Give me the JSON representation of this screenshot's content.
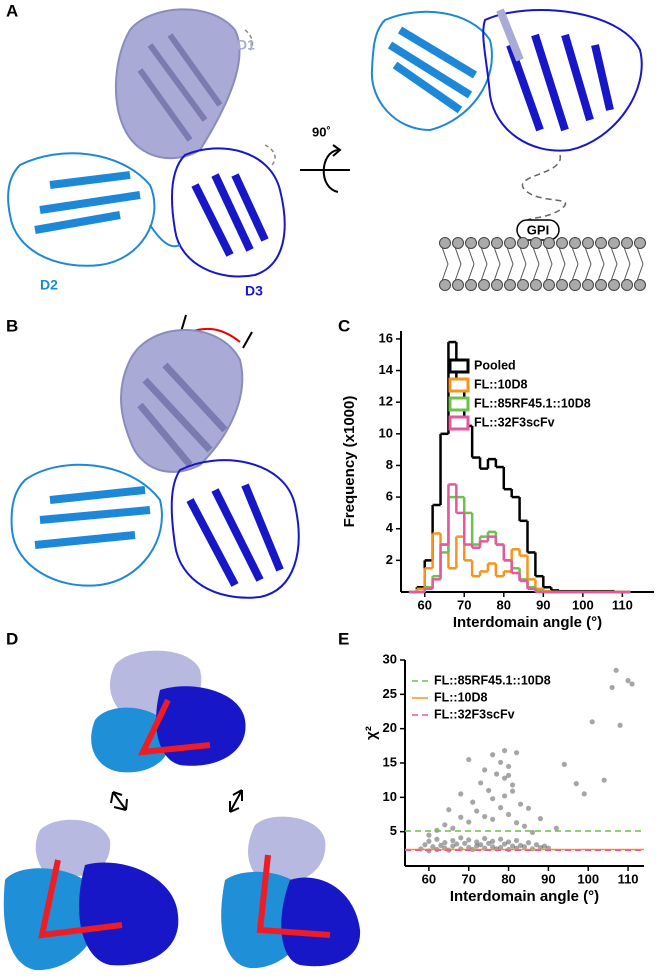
{
  "panel_labels": [
    "A",
    "B",
    "C",
    "D",
    "E"
  ],
  "annotations": {
    "d1": "D1",
    "d2": "D2",
    "d3": "D3",
    "rotation": "90˚",
    "gpi": "GPI"
  },
  "chart_data": [
    {
      "type": "histogram",
      "xlabel": "Interdomain angle (°)",
      "ylabel": "Frequency (x1000)",
      "bins": [
        56,
        58,
        60,
        62,
        64,
        66,
        68,
        70,
        72,
        74,
        76,
        78,
        80,
        82,
        84,
        86,
        88,
        90,
        92,
        94,
        96,
        98,
        100,
        102,
        104,
        106,
        108,
        110,
        112
      ],
      "series": [
        {
          "name": "Pooled",
          "color": "#000000",
          "values": [
            0,
            0.3,
            2,
            5.5,
            10,
            15.8,
            13,
            10.5,
            8.5,
            7.8,
            8.4,
            7.9,
            6.5,
            6,
            4.5,
            2.5,
            1,
            0.3,
            0.1,
            0.05,
            0.05,
            0.05,
            0.05,
            0.05,
            0.05,
            0.05,
            0,
            0
          ]
        },
        {
          "name": "FL::10D8",
          "color": "#f7941d",
          "values": [
            0,
            0.2,
            1.5,
            3.7,
            3,
            1.5,
            3.5,
            2,
            1,
            1.3,
            1.8,
            1,
            1.3,
            2.7,
            2.3,
            0.8,
            0.2,
            0.05,
            0,
            0,
            0,
            0,
            0,
            0,
            0,
            0,
            0,
            0
          ]
        },
        {
          "name": "FL::85RF45.1::10D8",
          "color": "#6cc24a",
          "values": [
            0,
            0,
            0.3,
            1,
            2.5,
            6,
            6,
            5,
            3,
            3.5,
            3.8,
            3,
            2,
            1.5,
            0.8,
            0.3,
            0.1,
            0,
            0,
            0,
            0,
            0,
            0,
            0,
            0,
            0,
            0,
            0
          ]
        },
        {
          "name": "FL::32F3scFv",
          "color": "#e8569c",
          "values": [
            0,
            0,
            0.2,
            0.8,
            3,
            6.8,
            5,
            3,
            2.8,
            3.2,
            3.5,
            3,
            2,
            1.2,
            0.7,
            0.2,
            0,
            0,
            0,
            0,
            0,
            0,
            0,
            0,
            0,
            0,
            0,
            0
          ]
        }
      ],
      "xlim": [
        54,
        118
      ],
      "ylim": [
        0,
        16.5
      ],
      "xticks": [
        60,
        70,
        80,
        90,
        100,
        110
      ],
      "yticks": [
        2,
        4,
        6,
        8,
        10,
        12,
        14,
        16
      ]
    },
    {
      "type": "scatter",
      "xlabel": "Interdomain angle (°)",
      "ylabel": "χ²",
      "color": "#000000",
      "x": [
        58,
        59,
        60,
        60,
        61,
        62,
        62,
        63,
        64,
        64,
        65,
        66,
        66,
        67,
        68,
        68,
        69,
        70,
        70,
        71,
        72,
        72,
        73,
        74,
        74,
        75,
        76,
        76,
        77,
        78,
        78,
        79,
        80,
        80,
        81,
        82,
        82,
        83,
        84,
        85,
        86,
        87,
        88,
        89,
        90,
        60,
        62,
        64,
        66,
        68,
        70,
        72,
        74,
        76,
        78,
        80,
        82,
        84,
        86,
        65,
        68,
        71,
        73,
        75,
        77,
        79,
        80,
        81,
        83,
        70,
        74,
        76,
        78,
        79,
        80,
        81,
        76,
        79,
        82,
        85,
        88,
        92,
        94,
        97,
        99,
        101,
        104,
        106,
        107,
        108,
        110,
        111
      ],
      "y": [
        2.5,
        3.1,
        2.2,
        3.6,
        2.8,
        2.4,
        3.9,
        3.0,
        2.6,
        3.4,
        2.3,
        3.7,
        2.9,
        3.2,
        2.5,
        4.1,
        3.3,
        2.7,
        3.8,
        2.4,
        3.5,
        2.9,
        3.1,
        2.6,
        4.0,
        3.3,
        2.8,
        3.6,
        2.5,
        3.9,
        2.7,
        3.2,
        2.4,
        3.5,
        2.9,
        3.7,
        2.6,
        3.0,
        2.8,
        3.4,
        2.5,
        3.1,
        2.7,
        2.9,
        2.6,
        4.5,
        5.2,
        6.0,
        5.5,
        7.1,
        6.4,
        8.0,
        7.2,
        6.8,
        8.5,
        7.5,
        6.3,
        5.8,
        4.9,
        8.2,
        10.5,
        9.3,
        12.1,
        11.0,
        13.4,
        12.8,
        14.5,
        10.9,
        9.0,
        15.5,
        14.0,
        16.2,
        15.1,
        16.8,
        13.2,
        11.8,
        9.8,
        10.2,
        16.5,
        8.4,
        6.9,
        5.5,
        14.8,
        12.0,
        10.5,
        21.0,
        12.5,
        26.0,
        28.5,
        20.5,
        27.0,
        26.5
      ],
      "lines": [
        {
          "name": "FL::85RF45.1::10D8",
          "value": 5.1,
          "color": "#6cc24a",
          "dashed": true
        },
        {
          "name": "FL::10D8",
          "value": 2.4,
          "color": "#f7941d",
          "dashed": false
        },
        {
          "name": "FL::32F3scFv",
          "value": 2.3,
          "color": "#e8569c",
          "dashed": true
        }
      ],
      "xlim": [
        54,
        114
      ],
      "ylim": [
        0,
        30
      ],
      "xticks": [
        60,
        70,
        80,
        90,
        100,
        110
      ],
      "yticks": [
        5,
        10,
        15,
        20,
        25,
        30
      ]
    }
  ]
}
